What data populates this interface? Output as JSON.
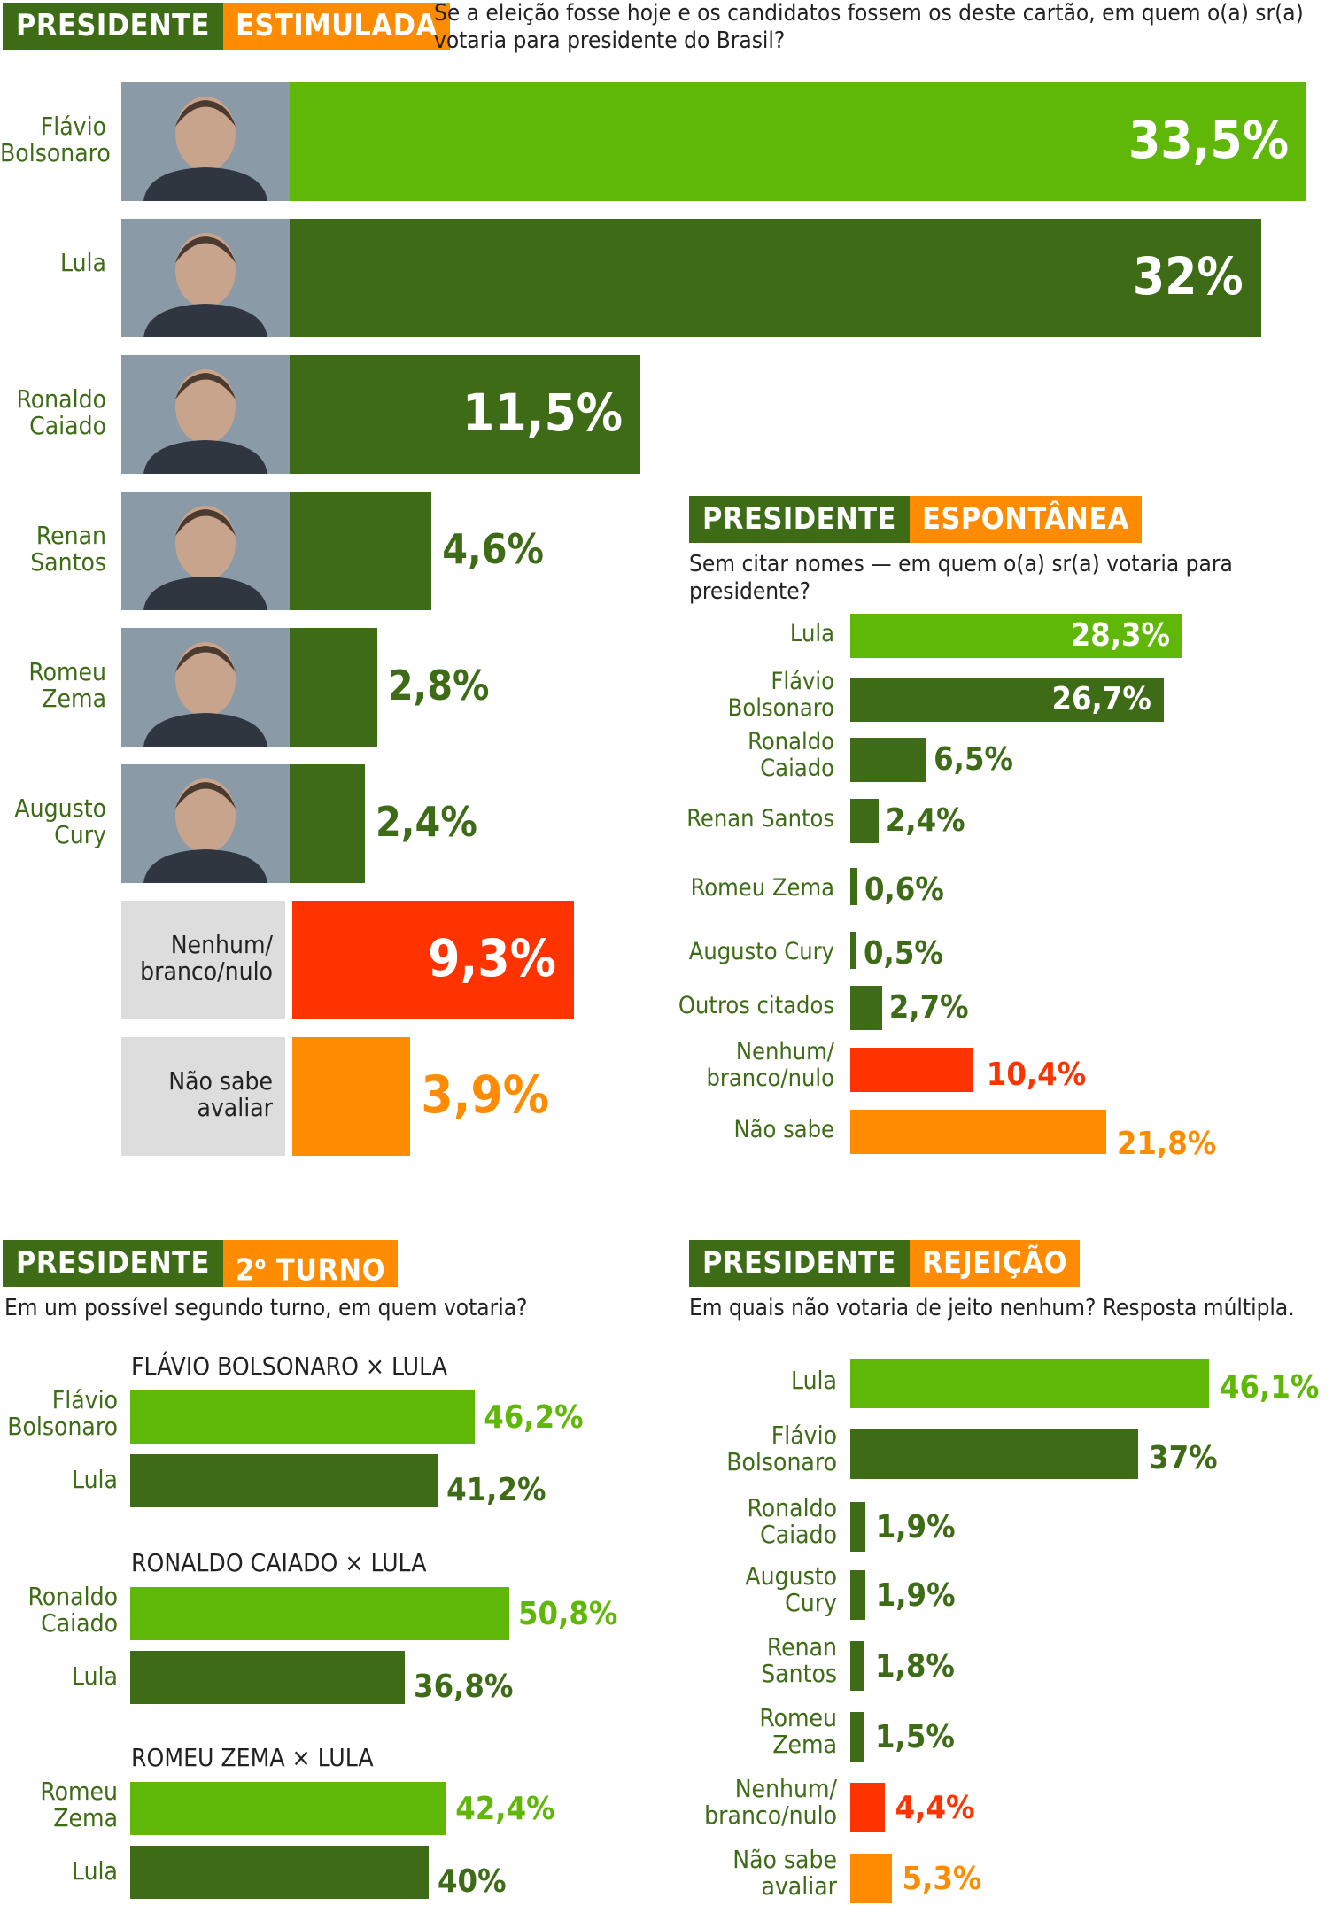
{
  "colors": {
    "dark_green": "#3d6b16",
    "light_green": "#5fb708",
    "red": "#ff3300",
    "orange": "#ff8c00",
    "grey": "#dddddd"
  },
  "estimulada": {
    "h1": "PRESIDENTE",
    "h2": "ESTIMULADA",
    "question": "Se a eleição fosse hoje e os candidatos fossem os deste cartão, em quem o(a) sr(a) votaria para presidente do Brasil?",
    "labels": [
      "Flávio\nBolsonaro",
      "Lula",
      "Ronaldo\nCaiado",
      "Renan\nSantos",
      "Romeu\nZema",
      "Augusto\nCury",
      "Nenhum/\nbranco/nulo",
      "Não sabe\navaliar"
    ],
    "display": [
      "33,5%",
      "32%",
      "11,5%",
      "4,6%",
      "2,8%",
      "2,4%",
      "9,3%",
      "3,9%"
    ]
  },
  "espontanea": {
    "h1": "PRESIDENTE",
    "h2": "ESPONTÂNEA",
    "question": "Sem citar nomes — em quem o(a) sr(a) votaria para presidente?",
    "labels": [
      "Lula",
      "Flávio\nBolsonaro",
      "Ronaldo\nCaiado",
      "Renan Santos",
      "Romeu Zema",
      "Augusto Cury",
      "Outros citados",
      "Nenhum/\nbranco/nulo",
      "Não sabe"
    ],
    "display": [
      "28,3%",
      "26,7%",
      "6,5%",
      "2,4%",
      "0,6%",
      "0,5%",
      "2,7%",
      "10,4%",
      "21,8%"
    ]
  },
  "segundo_turno": {
    "h1": "PRESIDENTE",
    "h2_num": "2",
    "h2_sup": "o",
    "h2_rest": " TURNO",
    "question": "Em um possível segundo turno, em quem votaria?",
    "matchups": [
      {
        "title": "FLÁVIO BOLSONARO × LULA",
        "a_label": "Flávio\nBolsonaro",
        "a_display": "46,2%",
        "b_label": "Lula",
        "b_display": "41,2%"
      },
      {
        "title": "RONALDO CAIADO × LULA",
        "a_label": "Ronaldo\nCaiado",
        "a_display": "50,8%",
        "b_label": "Lula",
        "b_display": "36,8%"
      },
      {
        "title": "ROMEU ZEMA × LULA",
        "a_label": "Romeu\nZema",
        "a_display": "42,4%",
        "b_label": "Lula",
        "b_display": "40%"
      }
    ]
  },
  "rejeicao": {
    "h1": "PRESIDENTE",
    "h2": "REJEIÇÃO",
    "question": "Em quais não votaria de jeito nenhum? Resposta múltipla.",
    "labels": [
      "Lula",
      "Flávio\nBolsonaro",
      "Ronaldo\nCaiado",
      "Augusto\nCury",
      "Renan\nSantos",
      "Romeu\nZema",
      "Nenhum/\nbranco/nulo",
      "Não sabe\navaliar"
    ],
    "display": [
      "46,1%",
      "37%",
      "1,9%",
      "1,9%",
      "1,8%",
      "1,5%",
      "4,4%",
      "5,3%"
    ]
  },
  "chart_data": [
    {
      "type": "bar",
      "title": "PRESIDENTE ESTIMULADA",
      "categories": [
        "Flávio Bolsonaro",
        "Lula",
        "Ronaldo Caiado",
        "Renan Santos",
        "Romeu Zema",
        "Augusto Cury",
        "Nenhum/branco/nulo",
        "Não sabe avaliar"
      ],
      "values": [
        33.5,
        32,
        11.5,
        4.6,
        2.8,
        2.4,
        9.3,
        3.9
      ]
    },
    {
      "type": "bar",
      "title": "PRESIDENTE ESPONTÂNEA",
      "categories": [
        "Lula",
        "Flávio Bolsonaro",
        "Ronaldo Caiado",
        "Renan Santos",
        "Romeu Zema",
        "Augusto Cury",
        "Outros citados",
        "Nenhum/branco/nulo",
        "Não sabe"
      ],
      "values": [
        28.3,
        26.7,
        6.5,
        2.4,
        0.6,
        0.5,
        2.7,
        10.4,
        21.8
      ]
    },
    {
      "type": "bar",
      "title": "PRESIDENTE 2º TURNO",
      "categories": [
        "FLÁVIO BOLSONARO × LULA",
        "RONALDO CAIADO × LULA",
        "ROMEU ZEMA × LULA"
      ],
      "series": [
        {
          "values": [
            46.2,
            50.8,
            42.4
          ]
        },
        {
          "values": [
            41.2,
            36.8,
            40
          ]
        }
      ]
    },
    {
      "type": "bar",
      "title": "PRESIDENTE REJEIÇÃO",
      "categories": [
        "Lula",
        "Flávio Bolsonaro",
        "Ronaldo Caiado",
        "Augusto Cury",
        "Renan Santos",
        "Romeu Zema",
        "Nenhum/branco/nulo",
        "Não sabe avaliar"
      ],
      "values": [
        46.1,
        37,
        1.9,
        1.9,
        1.8,
        1.5,
        4.4,
        5.3
      ]
    }
  ]
}
